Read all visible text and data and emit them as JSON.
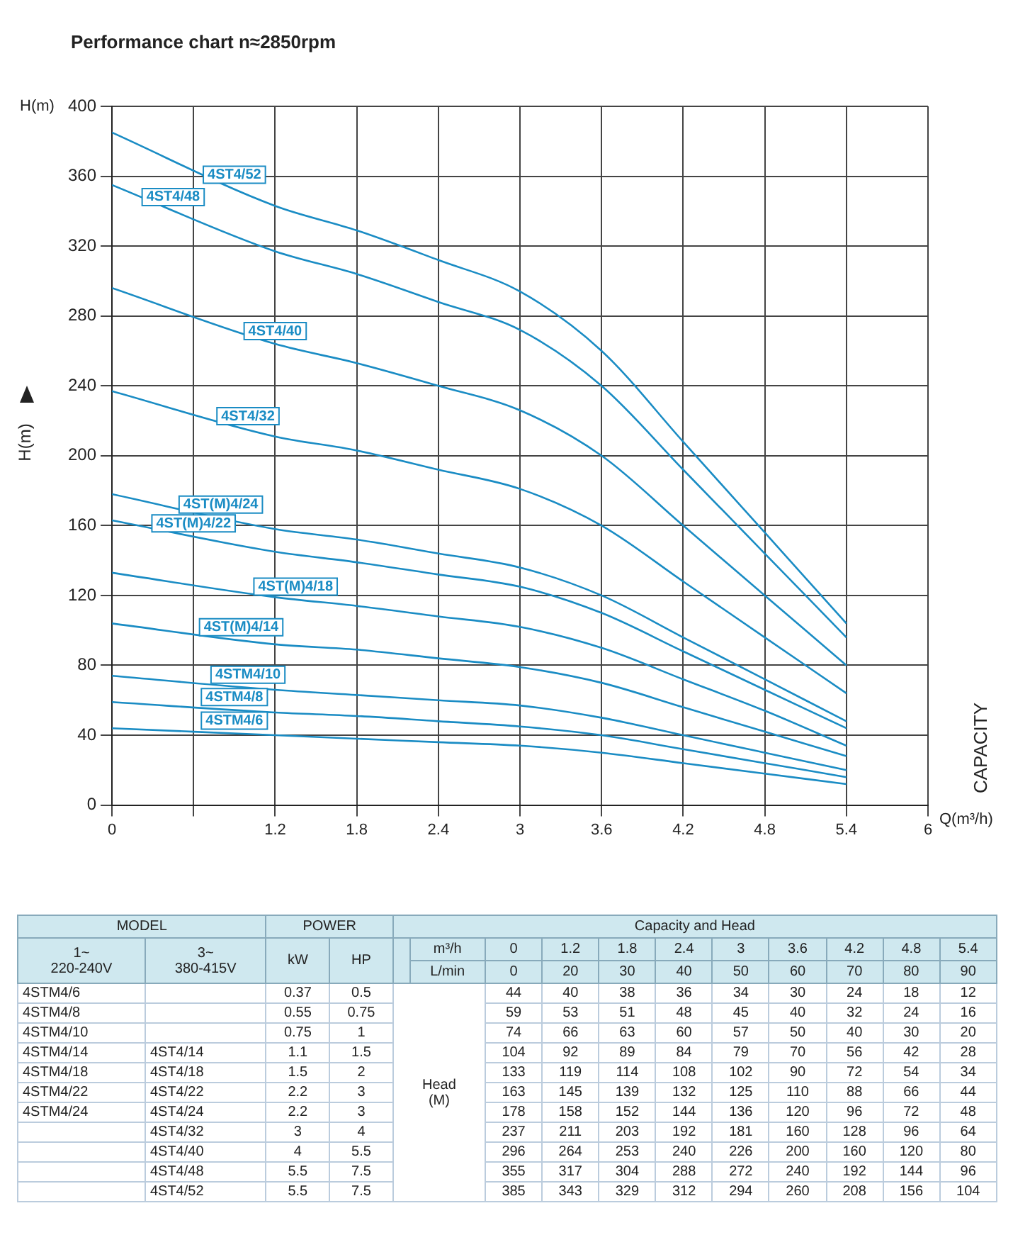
{
  "chart_data": {
    "type": "line",
    "title": "Performance chart n≈2850rpm",
    "xlabel": "Q(m³/h)",
    "ylabel": "H(m)",
    "x": [
      0,
      1.2,
      1.8,
      2.4,
      3,
      3.6,
      4.2,
      4.8,
      5.4
    ],
    "xlim": [
      0,
      6
    ],
    "xticks": [
      0,
      {
        "value": 0.6,
        "label": null
      },
      1.2,
      1.8,
      2.4,
      3,
      3.6,
      4.2,
      4.8,
      5.4,
      6
    ],
    "ylim": [
      0,
      400
    ],
    "yticks": [
      0,
      40,
      80,
      120,
      160,
      200,
      240,
      280,
      320,
      360,
      400
    ],
    "grid": true,
    "series": [
      {
        "name": "4STM4/6",
        "color": "#1a8cc4",
        "values": [
          44,
          40,
          38,
          36,
          34,
          30,
          24,
          18,
          12
        ]
      },
      {
        "name": "4STM4/8",
        "color": "#1a8cc4",
        "values": [
          59,
          53,
          51,
          48,
          45,
          40,
          32,
          24,
          16
        ]
      },
      {
        "name": "4STM4/10",
        "color": "#1a8cc4",
        "values": [
          74,
          66,
          63,
          60,
          57,
          50,
          40,
          30,
          20
        ]
      },
      {
        "name": "4ST(M)4/14",
        "color": "#1a8cc4",
        "values": [
          104,
          92,
          89,
          84,
          79,
          70,
          56,
          42,
          28
        ]
      },
      {
        "name": "4ST(M)4/18",
        "color": "#1a8cc4",
        "values": [
          133,
          119,
          114,
          108,
          102,
          90,
          72,
          54,
          34
        ]
      },
      {
        "name": "4ST(M)4/22",
        "color": "#1a8cc4",
        "values": [
          163,
          145,
          139,
          132,
          125,
          110,
          88,
          66,
          44
        ]
      },
      {
        "name": "4ST(M)4/24",
        "color": "#1a8cc4",
        "values": [
          178,
          158,
          152,
          144,
          136,
          120,
          96,
          72,
          48
        ]
      },
      {
        "name": "4ST4/32",
        "color": "#1a8cc4",
        "values": [
          237,
          211,
          203,
          192,
          181,
          160,
          128,
          96,
          64
        ]
      },
      {
        "name": "4ST4/40",
        "color": "#1a8cc4",
        "values": [
          296,
          264,
          253,
          240,
          226,
          200,
          160,
          120,
          80
        ]
      },
      {
        "name": "4ST4/48",
        "color": "#1a8cc4",
        "values": [
          355,
          317,
          304,
          288,
          272,
          240,
          192,
          144,
          96
        ]
      },
      {
        "name": "4ST4/52",
        "color": "#1a8cc4",
        "values": [
          385,
          343,
          329,
          312,
          294,
          260,
          208,
          156,
          104
        ]
      }
    ],
    "annotations": [
      "H(m)",
      "CAPACITY",
      "MODEL",
      "POWER",
      "Capacity and Head",
      "1~\n220-240V",
      "3~\n380-415V",
      "kW",
      "HP",
      "m³/h",
      "L/min",
      "Head\n(M)",
      "0",
      "1.2",
      "1.8",
      "2.4",
      "3",
      "3.6",
      "4.2",
      "4.8",
      "5.4",
      "0",
      "20",
      "30",
      "40",
      "50",
      "60",
      "70",
      "80",
      "90",
      "4STM4/6",
      null,
      "0.37",
      "0.5",
      "44",
      "40",
      "38",
      "36",
      "34",
      "30",
      "24",
      "18",
      "12",
      "4STM4/8",
      null,
      "0.55",
      "0.75",
      "59",
      "53",
      "51",
      "48",
      "45",
      "40",
      "32",
      "24",
      "16",
      "4STM4/10",
      null,
      "0.75",
      "1",
      "74",
      "66",
      "63",
      "60",
      "57",
      "50",
      "40",
      "30",
      "20",
      "4STM4/14",
      "4ST4/14",
      "1.1",
      "1.5",
      "104",
      "92",
      "89",
      "84",
      "79",
      "70",
      "56",
      "42",
      "28",
      "4STM4/18",
      "4ST4/18",
      "1.5",
      "2",
      "133",
      "119",
      "114",
      "108",
      "102",
      "90",
      "72",
      "54",
      "34",
      "4STM4/22",
      "4ST4/22",
      "2.2",
      "3",
      "163",
      "145",
      "139",
      "132",
      "125",
      "110",
      "88",
      "66",
      "44",
      "4STM4/24",
      "4ST4/24",
      "2.2",
      "3",
      "178",
      "158",
      "152",
      "144",
      "136",
      "120",
      "96",
      "72",
      "48",
      null,
      "4ST4/32",
      "3",
      "4",
      "237",
      "211",
      "203",
      "192",
      "181",
      "160",
      "128",
      "96",
      "64",
      null,
      "4ST4/40",
      "4",
      "5.5",
      "296",
      "264",
      "253",
      "240",
      "226",
      "200",
      "160",
      "120",
      "80",
      null,
      "4ST4/48",
      "5.5",
      "7.5",
      "355",
      "317",
      "304",
      "288",
      "272",
      "240",
      "192",
      "144",
      "96",
      null,
      "4ST4/52",
      "5.5",
      "7.5",
      "385",
      "343",
      "329",
      "312",
      "294",
      "260",
      "208",
      "156",
      "104"
    ]
  }
}
